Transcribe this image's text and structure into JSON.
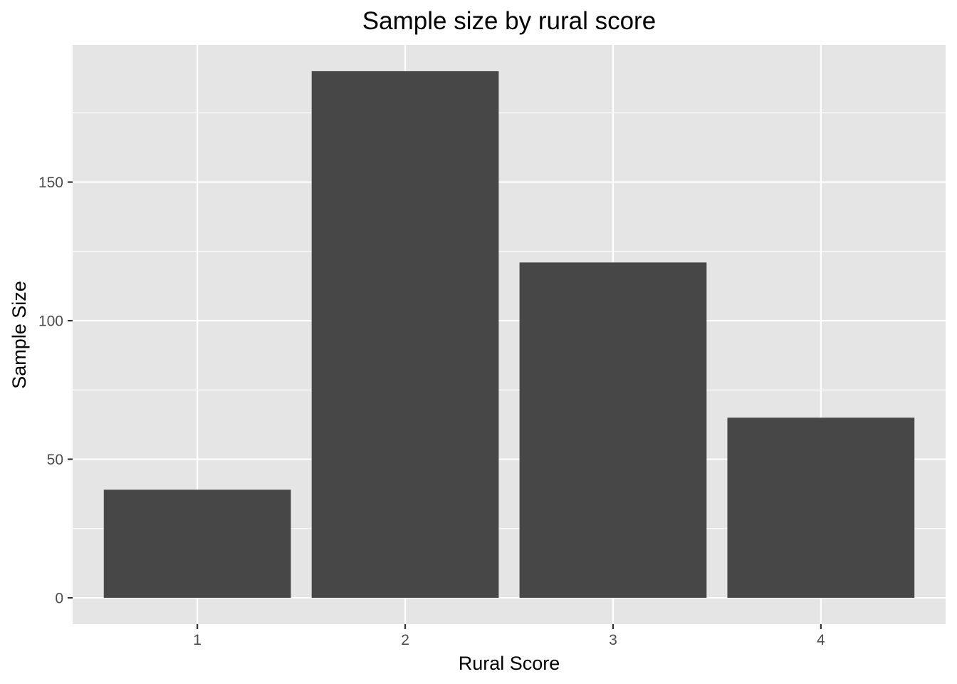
{
  "chart_data": {
    "type": "bar",
    "title": "Sample size by rural score",
    "xlabel": "Rural Score",
    "ylabel": "Sample Size",
    "categories": [
      "1",
      "2",
      "3",
      "4"
    ],
    "values": [
      39,
      190,
      121,
      65
    ],
    "ylim": [
      -9.5,
      199.5
    ],
    "yticks": [
      0,
      50,
      100,
      150
    ],
    "y_minor_ticks": [
      25,
      75,
      125,
      175
    ],
    "grid": true,
    "legend": "none",
    "colors": {
      "bar": "#474747",
      "panel_background": "#e5e5e5",
      "grid": "#ffffff",
      "tick": "#333333",
      "tick_label": "#4d4d4d"
    }
  }
}
